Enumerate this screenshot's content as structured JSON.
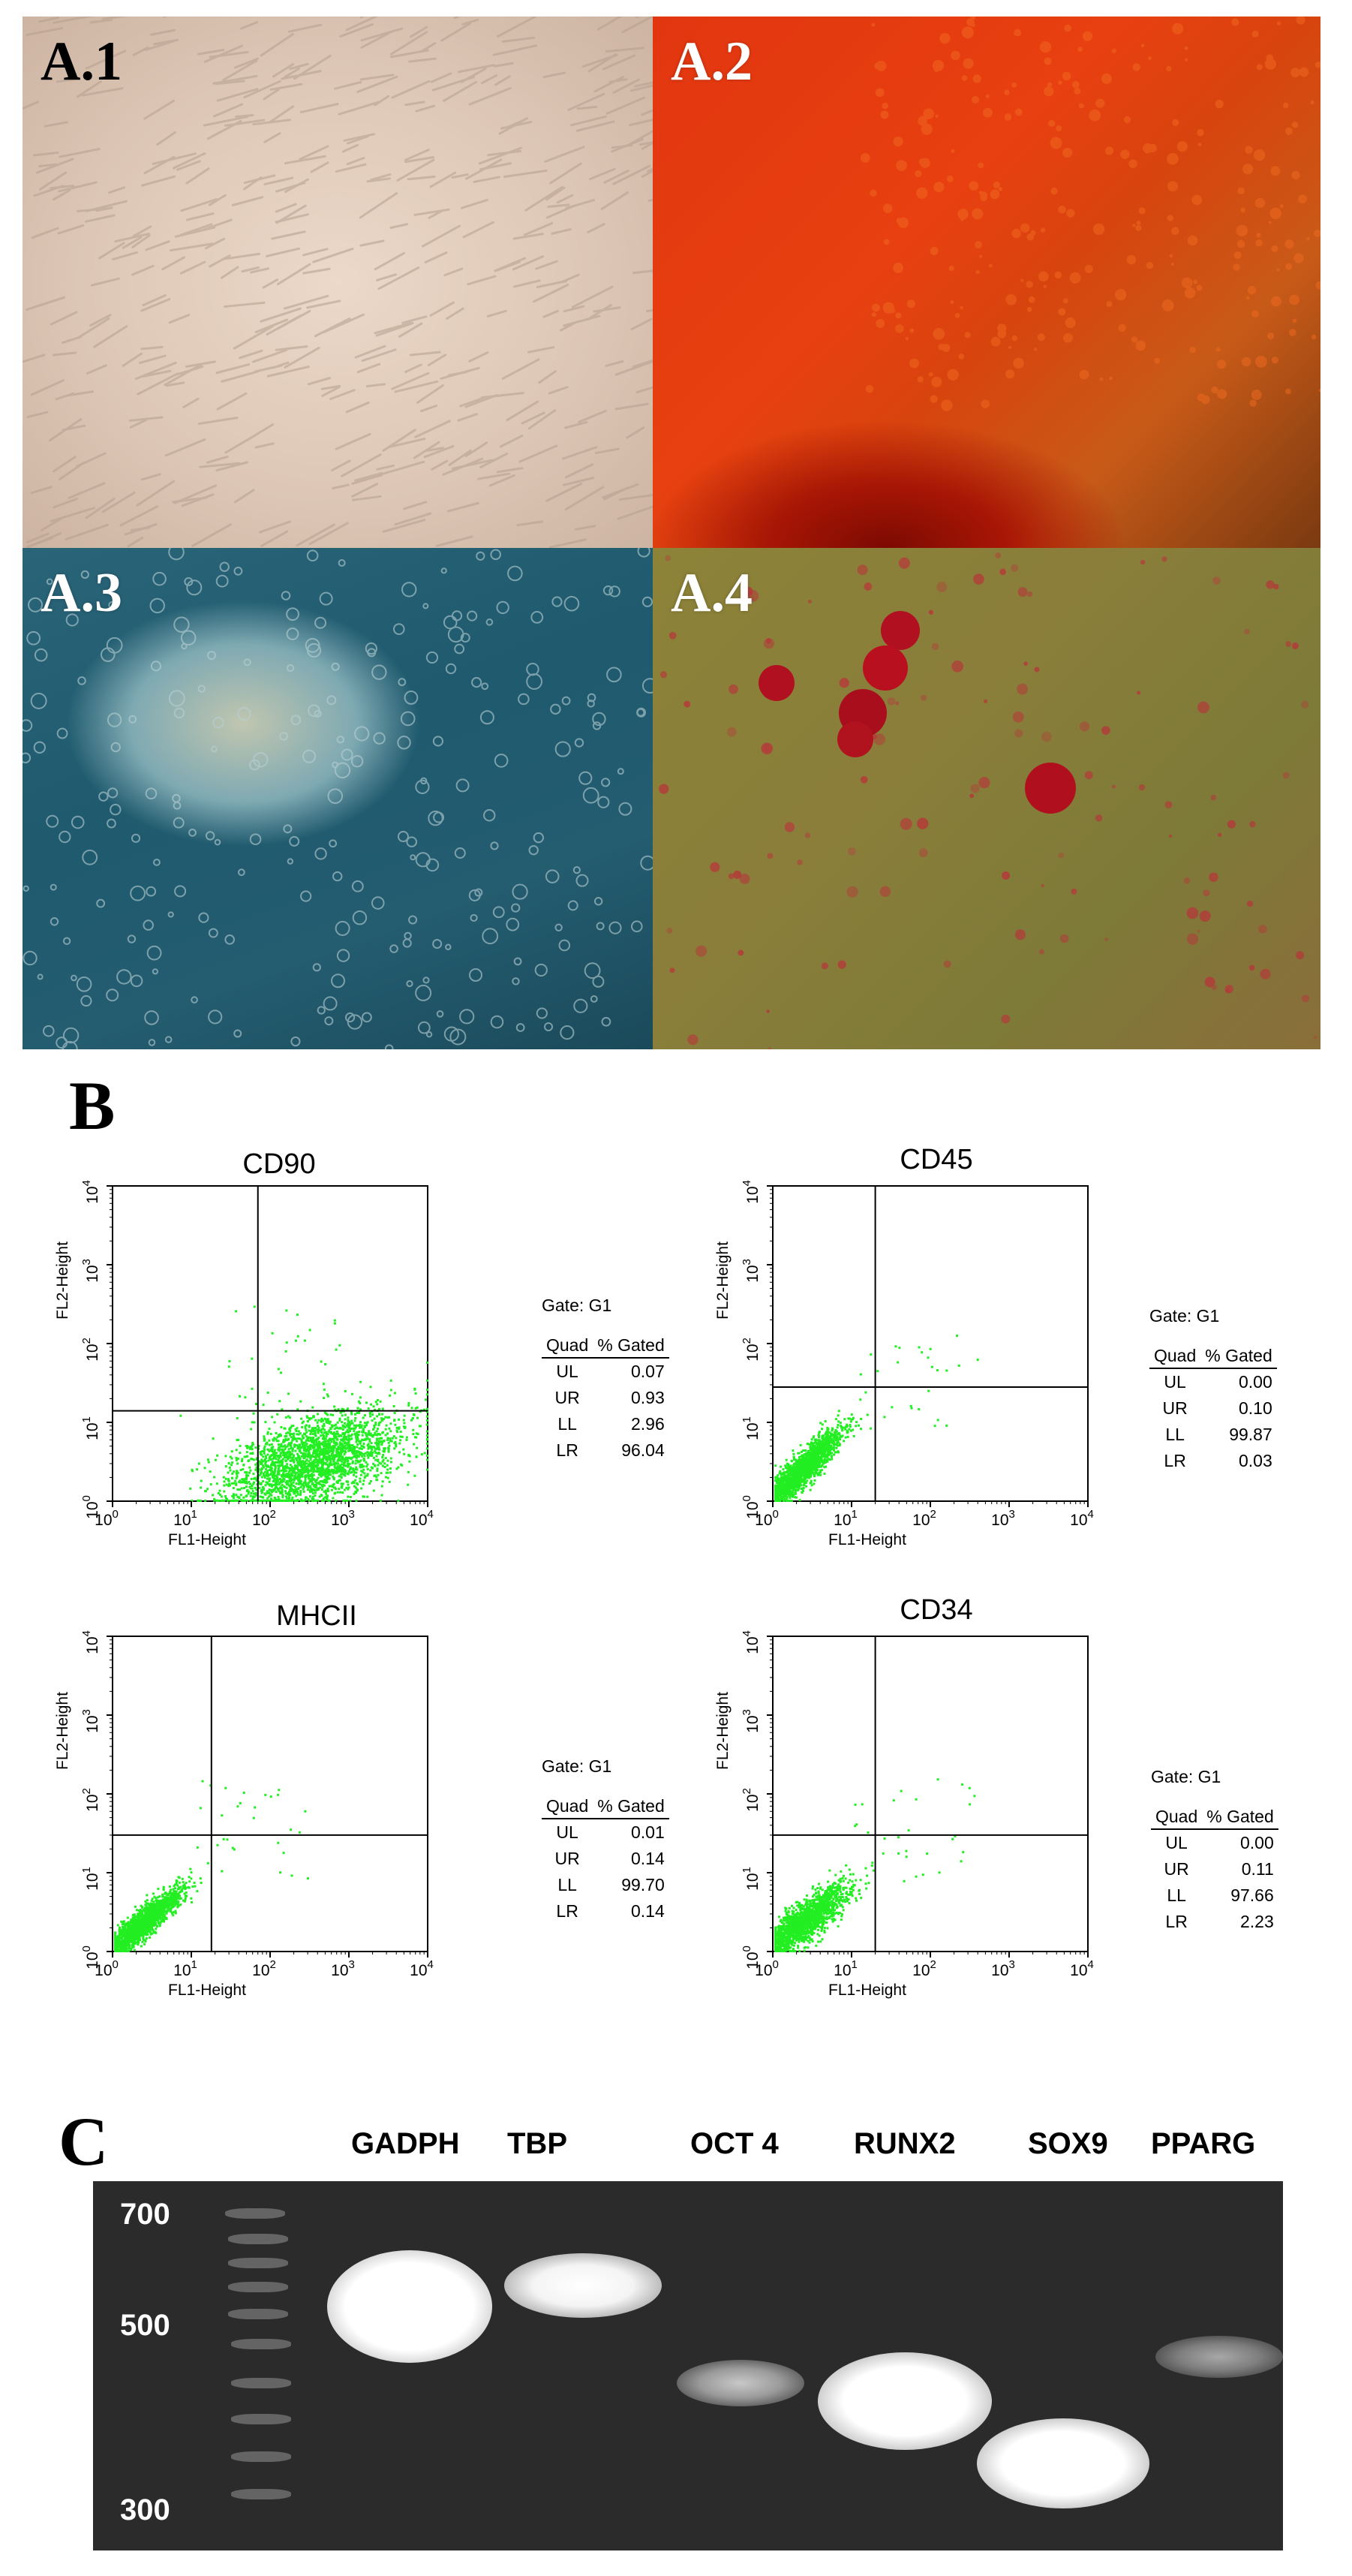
{
  "panel_a": {
    "images": [
      {
        "label": "A.1"
      },
      {
        "label": "A.2"
      },
      {
        "label": "A.3"
      },
      {
        "label": "A.4"
      }
    ]
  },
  "panel_b": {
    "letter": "B",
    "plots": [
      {
        "title": "CD90",
        "gate": "Gate: G1",
        "quad_header": "Quad",
        "pct_header": "% Gated",
        "rows": [
          [
            "UL",
            "0.07"
          ],
          [
            "UR",
            "0.93"
          ],
          [
            "LL",
            "2.96"
          ],
          [
            "LR",
            "96.04"
          ]
        ]
      },
      {
        "title": "CD45",
        "gate": "Gate: G1",
        "quad_header": "Quad",
        "pct_header": "% Gated",
        "rows": [
          [
            "UL",
            "0.00"
          ],
          [
            "UR",
            "0.10"
          ],
          [
            "LL",
            "99.87"
          ],
          [
            "LR",
            "0.03"
          ]
        ]
      },
      {
        "title": "MHCII",
        "gate": "Gate: G1",
        "quad_header": "Quad",
        "pct_header": "% Gated",
        "rows": [
          [
            "UL",
            "0.01"
          ],
          [
            "UR",
            "0.14"
          ],
          [
            "LL",
            "99.70"
          ],
          [
            "LR",
            "0.14"
          ]
        ]
      },
      {
        "title": "CD34",
        "gate": "Gate: G1",
        "quad_header": "Quad",
        "pct_header": "% Gated",
        "rows": [
          [
            "UL",
            "0.00"
          ],
          [
            "UR",
            "0.11"
          ],
          [
            "LL",
            "97.66"
          ],
          [
            "LR",
            "2.23"
          ]
        ]
      }
    ],
    "x_axis_label": "FL1-Height",
    "y_axis_label": "FL2-Height",
    "tick_labels": [
      "10",
      "10",
      "10",
      "10",
      "10"
    ],
    "tick_exponents": [
      "0",
      "1",
      "2",
      "3",
      "4"
    ]
  },
  "panel_c": {
    "letter": "C",
    "lanes": [
      {
        "label": "GADPH"
      },
      {
        "label": "TBP"
      },
      {
        "label": "OCT 4"
      },
      {
        "label": "RUNX2"
      },
      {
        "label": "SOX9"
      },
      {
        "label": "PPARG"
      }
    ],
    "size_markers": [
      {
        "label": "700"
      },
      {
        "label": "500"
      },
      {
        "label": "300"
      }
    ]
  }
}
